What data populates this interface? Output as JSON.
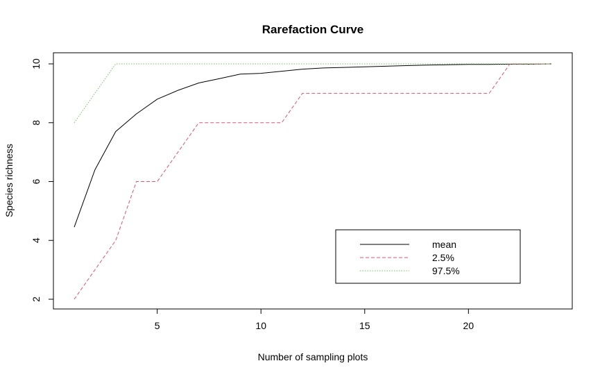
{
  "chart_data": {
    "type": "line",
    "title": "Rarefaction Curve",
    "xlabel": "Number of sampling plots",
    "ylabel": "Species richness",
    "xlim": [
      1,
      24
    ],
    "ylim": [
      2,
      10
    ],
    "x_ticks": [
      5,
      10,
      15,
      20
    ],
    "y_ticks": [
      2,
      4,
      6,
      8,
      10
    ],
    "grid": false,
    "legend": {
      "position": "bottom-right",
      "box": true
    },
    "x": [
      1,
      2,
      3,
      4,
      5,
      6,
      7,
      8,
      9,
      10,
      11,
      12,
      13,
      14,
      15,
      16,
      17,
      18,
      19,
      20,
      21,
      22,
      23,
      24
    ],
    "series": [
      {
        "name": "mean",
        "color": "#000000",
        "dash": "solid",
        "values": [
          4.45,
          6.4,
          7.7,
          8.3,
          8.8,
          9.1,
          9.35,
          9.5,
          9.65,
          9.68,
          9.75,
          9.82,
          9.86,
          9.88,
          9.9,
          9.92,
          9.94,
          9.96,
          9.97,
          9.98,
          9.98,
          9.99,
          9.99,
          10.0
        ]
      },
      {
        "name": "2.5%",
        "color": "#DF536B",
        "dash": "dashed",
        "values": [
          2,
          3,
          4,
          6,
          6,
          7,
          8,
          8,
          8,
          8,
          8,
          9,
          9,
          9,
          9,
          9,
          9,
          9,
          9,
          9,
          9,
          10,
          10,
          10
        ]
      },
      {
        "name": "97.5%",
        "color": "#61D04F",
        "dash": "dotted",
        "values": [
          8,
          9,
          10,
          10,
          10,
          10,
          10,
          10,
          10,
          10,
          10,
          10,
          10,
          10,
          10,
          10,
          10,
          10,
          10,
          10,
          10,
          10,
          10,
          10
        ]
      }
    ]
  }
}
